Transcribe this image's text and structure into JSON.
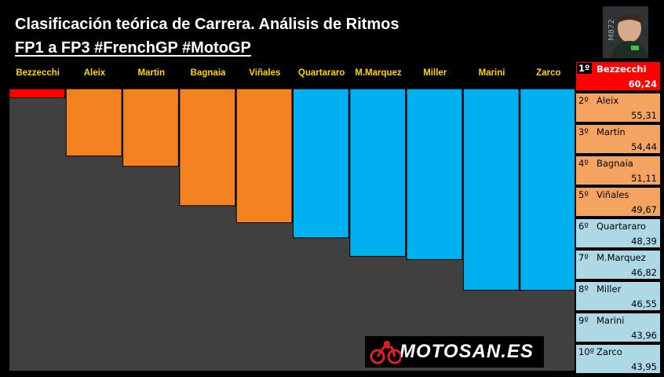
{
  "header": {
    "title": "Clasificación teórica de Carrera. Análisis de Ritmos",
    "subtitle": "FP1 a FP3 #FrenchGP #MotoGP"
  },
  "colors": {
    "leader": "#ff0000",
    "orange": "#f58220",
    "blue": "#00b0f0",
    "floor": "#404040",
    "leader_row": "#ff0000",
    "orange_row": "#f4a460",
    "blue_row": "#add8e6"
  },
  "avatar": {
    "caption": "M872"
  },
  "logo": {
    "text": "MOTOSAN.ES"
  },
  "chart_data": {
    "type": "bar",
    "categories": [
      "Bezzecchi",
      "Aleix",
      "Martin",
      "Bagnaia",
      "Viñales",
      "Quartararo",
      "M.Marquez",
      "Miller",
      "Marini",
      "Zarco"
    ],
    "values": [
      60.24,
      55.31,
      54.44,
      51.11,
      49.67,
      48.39,
      46.82,
      46.55,
      43.96,
      43.95
    ],
    "bar_colors": [
      "#ff0000",
      "#f58220",
      "#f58220",
      "#f58220",
      "#f58220",
      "#00b0f0",
      "#00b0f0",
      "#00b0f0",
      "#00b0f0",
      "#00b0f0"
    ],
    "ylim": [
      0,
      61
    ]
  },
  "standings": [
    {
      "pos": "1º",
      "name": "Bezzecchi",
      "value": "60,24"
    },
    {
      "pos": "2º",
      "name": "Aleix",
      "value": "55,31"
    },
    {
      "pos": "3º",
      "name": "Martin",
      "value": "54,44"
    },
    {
      "pos": "4º",
      "name": "Bagnaia",
      "value": "51,11"
    },
    {
      "pos": "5º",
      "name": "Viñales",
      "value": "49,67"
    },
    {
      "pos": "6º",
      "name": "Quartararo",
      "value": "48,39"
    },
    {
      "pos": "7º",
      "name": "M.Marquez",
      "value": "46,82"
    },
    {
      "pos": "8º",
      "name": "Miller",
      "value": "46,55"
    },
    {
      "pos": "9º",
      "name": "Marini",
      "value": "43,96"
    },
    {
      "pos": "10º",
      "name": "Zarco",
      "value": "43,95"
    }
  ]
}
